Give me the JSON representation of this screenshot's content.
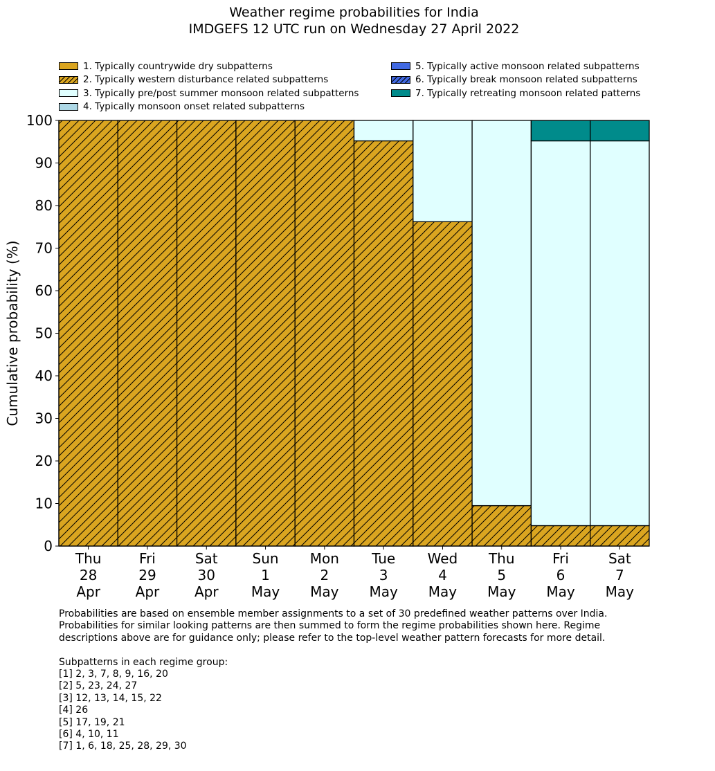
{
  "title": {
    "line1": "Weather regime probabilities for India",
    "line2": "IMDGEFS 12 UTC run on Wednesday 27 April 2022"
  },
  "legend": [
    {
      "label": "1. Typically countrywide dry subpatterns",
      "color": "#DAA520",
      "hatch": false
    },
    {
      "label": "2. Typically western disturbance related subpatterns",
      "color": "#DAA520",
      "hatch": true
    },
    {
      "label": "3. Typically pre/post summer monsoon related subpatterns",
      "color": "#E0FFFF",
      "hatch": false
    },
    {
      "label": "4. Typically monsoon onset related subpatterns",
      "color": "#ADD8E6",
      "hatch": false
    },
    {
      "label": "5. Typically active monsoon related subpatterns",
      "color": "#4169E1",
      "hatch": false
    },
    {
      "label": "6. Typically break monsoon related subpatterns",
      "color": "#4169E1",
      "hatch": true
    },
    {
      "label": "7. Typically retreating monsoon related patterns",
      "color": "#008B8B",
      "hatch": false
    }
  ],
  "chart_data": {
    "type": "bar",
    "stacked": true,
    "ylabel": "Cumulative probability (%)",
    "ylim": [
      0,
      100
    ],
    "yticks": [
      0,
      10,
      20,
      30,
      40,
      50,
      60,
      70,
      80,
      90,
      100
    ],
    "categories": [
      [
        "Thu",
        "28",
        "Apr"
      ],
      [
        "Fri",
        "29",
        "Apr"
      ],
      [
        "Sat",
        "30",
        "Apr"
      ],
      [
        "Sun",
        "1",
        "May"
      ],
      [
        "Mon",
        "2",
        "May"
      ],
      [
        "Tue",
        "3",
        "May"
      ],
      [
        "Wed",
        "4",
        "May"
      ],
      [
        "Thu",
        "5",
        "May"
      ],
      [
        "Fri",
        "6",
        "May"
      ],
      [
        "Sat",
        "7",
        "May"
      ]
    ],
    "series": [
      {
        "name": "1. Typically countrywide dry subpatterns",
        "color": "#DAA520",
        "hatch": false,
        "values": [
          0,
          0,
          0,
          0,
          0,
          0,
          0,
          0,
          0,
          0
        ]
      },
      {
        "name": "2. Typically western disturbance related subpatterns",
        "color": "#DAA520",
        "hatch": true,
        "values": [
          100,
          100,
          100,
          100,
          100,
          95.2,
          76.2,
          9.5,
          4.8,
          4.8
        ]
      },
      {
        "name": "3. Typically pre/post summer monsoon related subpatterns",
        "color": "#E0FFFF",
        "hatch": false,
        "values": [
          0,
          0,
          0,
          0,
          0,
          4.8,
          23.8,
          90.5,
          90.4,
          90.4
        ]
      },
      {
        "name": "4. Typically monsoon onset related subpatterns",
        "color": "#ADD8E6",
        "hatch": false,
        "values": [
          0,
          0,
          0,
          0,
          0,
          0,
          0,
          0,
          0,
          0
        ]
      },
      {
        "name": "5. Typically active monsoon related subpatterns",
        "color": "#4169E1",
        "hatch": false,
        "values": [
          0,
          0,
          0,
          0,
          0,
          0,
          0,
          0,
          0,
          0
        ]
      },
      {
        "name": "6. Typically break monsoon related subpatterns",
        "color": "#4169E1",
        "hatch": true,
        "values": [
          0,
          0,
          0,
          0,
          0,
          0,
          0,
          0,
          0,
          0
        ]
      },
      {
        "name": "7. Typically retreating monsoon related patterns",
        "color": "#008B8B",
        "hatch": false,
        "values": [
          0,
          0,
          0,
          0,
          0,
          0,
          0,
          0,
          4.8,
          4.8
        ]
      }
    ]
  },
  "footer": {
    "note_lines": [
      "Probabilities are based on ensemble member assignments to a set of 30 predefined weather patterns over India.",
      "Probabilities for similar looking patterns are then summed to form the regime probabilities shown here. Regime",
      "descriptions above are for guidance only; please refer to the top-level weather pattern forecasts for more detail."
    ],
    "groups_heading": "Subpatterns in each regime group:",
    "groups": [
      "[1] 2, 3, 7, 8, 9, 16, 20",
      "[2] 5, 23, 24, 27",
      "[3] 12, 13, 14, 15, 22",
      "[4] 26",
      "[5] 17, 19, 21",
      "[6] 4, 10, 11",
      "[7] 1, 6, 18, 25, 28, 29, 30"
    ]
  }
}
